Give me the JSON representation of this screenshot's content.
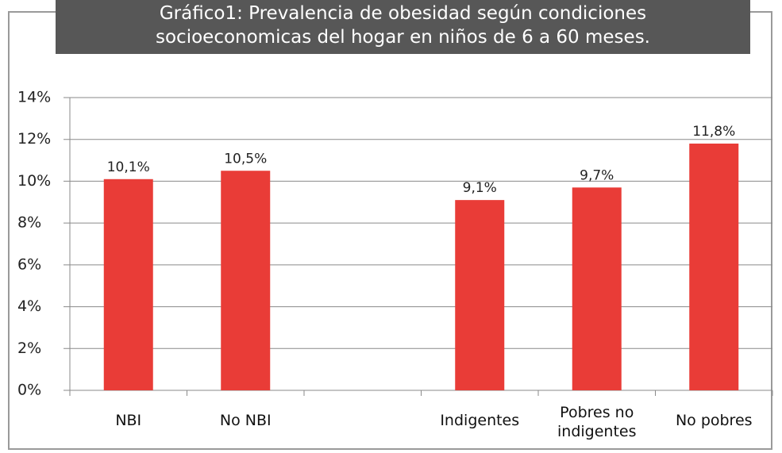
{
  "chart_data": {
    "type": "bar",
    "title": [
      "Gráfico1: Prevalencia de obesidad según condiciones",
      "socioeconomicas del hogar en niños de 6 a 60 meses."
    ],
    "categories": [
      "NBI",
      "No NBI",
      null,
      "Indigentes",
      "Pobres no indigentes",
      "No pobres"
    ],
    "values": [
      10.1,
      10.5,
      null,
      9.1,
      9.7,
      11.8
    ],
    "value_labels": [
      "10,1%",
      "10,5%",
      null,
      "9,1%",
      "9,7%",
      "11,8%"
    ],
    "color": "#e93c37",
    "ylim": [
      0,
      14
    ],
    "yticks": [
      {
        "value": 0,
        "label": "0%"
      },
      {
        "value": 2,
        "label": "2%"
      },
      {
        "value": 4,
        "label": "4%"
      },
      {
        "value": 6,
        "label": "6%"
      },
      {
        "value": 8,
        "label": "8%"
      },
      {
        "value": 10,
        "label": "10%"
      },
      {
        "value": 12,
        "label": "12%"
      },
      {
        "value": 14,
        "label": "14%"
      }
    ],
    "grid": true
  }
}
